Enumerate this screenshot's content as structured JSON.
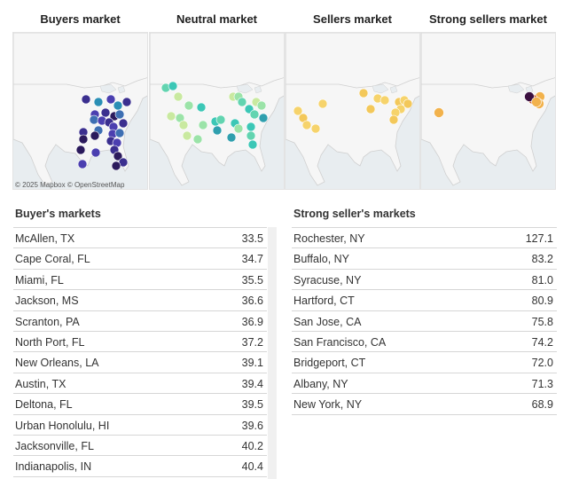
{
  "maps": {
    "titles": [
      "Buyers market",
      "Neutral market",
      "Sellers market",
      "Strong sellers market"
    ],
    "attribution": "© 2025 Mapbox  © OpenStreetMap",
    "colors": {
      "land": "#f6f6f6",
      "water": "#e8edf0",
      "border": "#cfcfcf",
      "buyers": [
        "#2b1a5c",
        "#3b2f8f",
        "#4b3fb0",
        "#3e6fb3",
        "#2a8fb5"
      ],
      "neutral": [
        "#3cc7b6",
        "#62d4b0",
        "#9be3a8",
        "#c9e9a0",
        "#2f9fae"
      ],
      "sellers": [
        "#f6d36b",
        "#f3c85a"
      ],
      "strong": [
        "#f2b24c",
        "#c9572a",
        "#3b1040"
      ]
    }
  },
  "buyers_table": {
    "title": "Buyer's markets",
    "rows": [
      {
        "name": "McAllen, TX",
        "value": "33.5"
      },
      {
        "name": "Cape Coral, FL",
        "value": "34.7"
      },
      {
        "name": "Miami, FL",
        "value": "35.5"
      },
      {
        "name": "Jackson, MS",
        "value": "36.6"
      },
      {
        "name": "Scranton, PA",
        "value": "36.9"
      },
      {
        "name": "North Port, FL",
        "value": "37.2"
      },
      {
        "name": "New Orleans, LA",
        "value": "39.1"
      },
      {
        "name": "Austin, TX",
        "value": "39.4"
      },
      {
        "name": "Deltona, FL",
        "value": "39.5"
      },
      {
        "name": "Urban Honolulu, HI",
        "value": "39.6"
      },
      {
        "name": "Jacksonville, FL",
        "value": "40.2"
      },
      {
        "name": "Indianapolis, IN",
        "value": "40.4"
      }
    ]
  },
  "strong_table": {
    "title": "Strong seller's markets",
    "rows": [
      {
        "name": "Rochester, NY",
        "value": "127.1"
      },
      {
        "name": "Buffalo, NY",
        "value": "83.2"
      },
      {
        "name": "Syracuse, NY",
        "value": "81.0"
      },
      {
        "name": "Hartford, CT",
        "value": "80.9"
      },
      {
        "name": "San Jose, CA",
        "value": "75.8"
      },
      {
        "name": "San Francisco, CA",
        "value": "74.2"
      },
      {
        "name": "Bridgeport, CT",
        "value": "72.0"
      },
      {
        "name": "Albany, NY",
        "value": "71.3"
      },
      {
        "name": "New York, NY",
        "value": "68.9"
      }
    ]
  }
}
